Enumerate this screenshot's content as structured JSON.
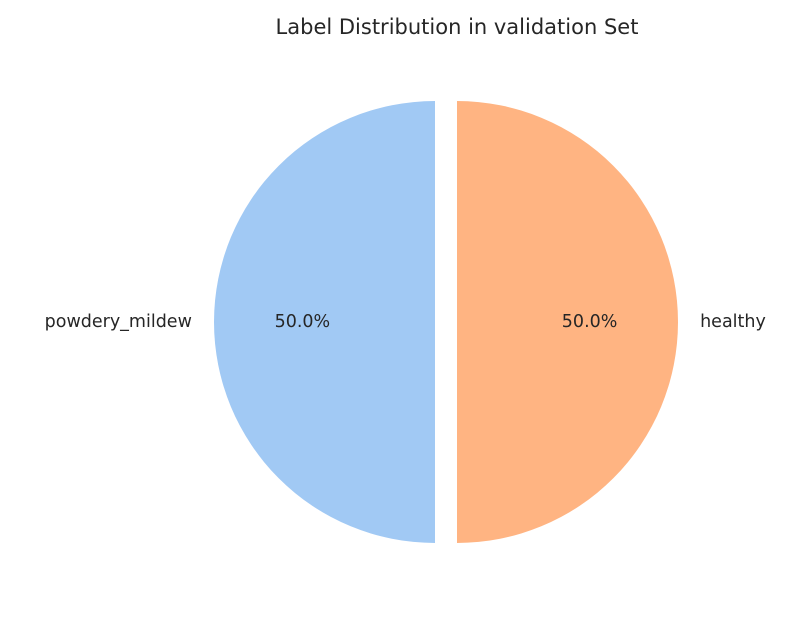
{
  "chart_data": {
    "type": "pie",
    "title": "Label Distribution in validation Set",
    "categories": [
      "powdery_mildew",
      "healthy"
    ],
    "values": [
      50.0,
      50.0
    ],
    "value_labels": [
      "50.0%",
      "50.0%"
    ],
    "colors": [
      "#a1c9f4",
      "#ffb482"
    ],
    "exploded": true,
    "legend": "none"
  }
}
